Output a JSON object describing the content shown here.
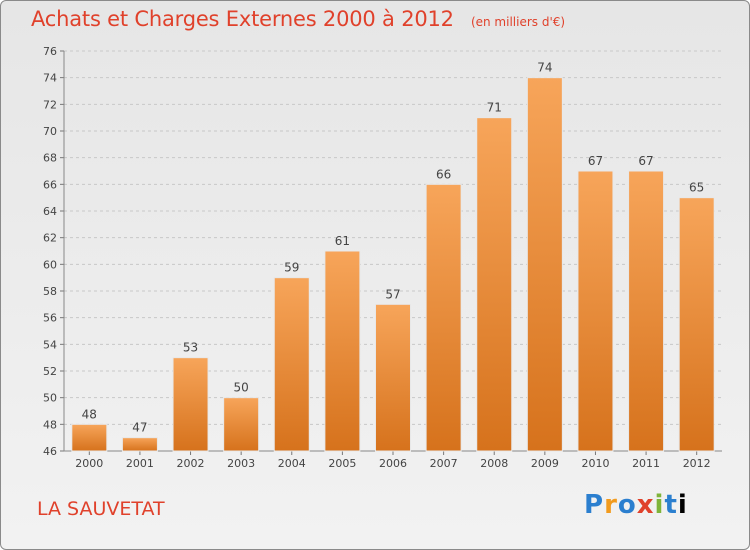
{
  "header": {
    "title": "Achats et Charges Externes 2000 à 2012",
    "subtitle": "(en milliers d'€)"
  },
  "footer": {
    "commune": "LA SAUVETAT",
    "logo_text": "Proxiti"
  },
  "colors": {
    "title": "#e0412b",
    "bar_top": "#f7a55a",
    "bar_bottom": "#d6721c",
    "bar_stroke": "#e8e8e8"
  },
  "chart_data": {
    "type": "bar",
    "categories": [
      "2000",
      "2001",
      "2002",
      "2003",
      "2004",
      "2005",
      "2006",
      "2007",
      "2008",
      "2009",
      "2010",
      "2011",
      "2012"
    ],
    "values": [
      48,
      47,
      53,
      50,
      59,
      61,
      57,
      66,
      71,
      74,
      67,
      67,
      65
    ],
    "title": "Achats et Charges Externes 2000 à 2012",
    "ylim": [
      46,
      76
    ],
    "yticks": [
      46,
      48,
      50,
      52,
      54,
      56,
      58,
      60,
      62,
      64,
      66,
      68,
      70,
      72,
      74,
      76
    ],
    "grid": true,
    "data_labels": true
  }
}
